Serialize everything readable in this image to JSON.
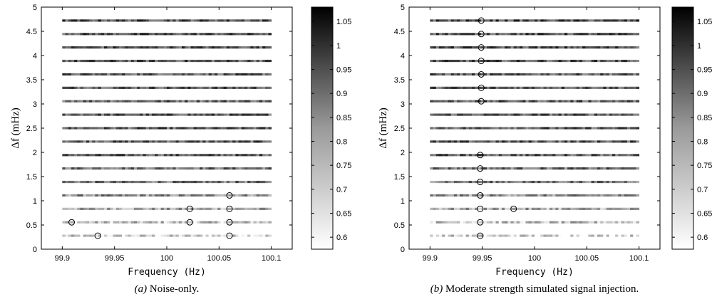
{
  "chart_data": [
    {
      "type": "scatter",
      "panel_label": "(a)",
      "caption": "Noise-only.",
      "xlabel": "Frequency (Hz)",
      "ylabel": "Δf (mHz)",
      "xlim": [
        99.88,
        100.12
      ],
      "ylim": [
        0,
        5
      ],
      "xticks": [
        "99.9",
        "99.95",
        "100",
        "100.05",
        "100.1"
      ],
      "yticks": [
        "0",
        "0.5",
        "1",
        "1.5",
        "2",
        "2.5",
        "3",
        "3.5",
        "4",
        "4.5",
        "5"
      ],
      "colorbar": {
        "range": [
          0.575,
          1.08
        ],
        "ticks": [
          "0.6",
          "0.65",
          "0.7",
          "0.75",
          "0.8",
          "0.85",
          "0.9",
          "0.95",
          "1",
          "1.05"
        ]
      },
      "rows": {
        "x_range": [
          99.9,
          100.1
        ],
        "delta_f": [
          0.278,
          0.556,
          0.833,
          1.111,
          1.389,
          1.667,
          1.944,
          2.222,
          2.5,
          2.778,
          3.056,
          3.333,
          3.611,
          3.889,
          4.167,
          4.444,
          4.722
        ],
        "mean_level": [
          0.66,
          0.7,
          0.74,
          0.8,
          0.84,
          0.87,
          0.9,
          0.9,
          0.9,
          0.9,
          0.9,
          0.9,
          0.9,
          0.9,
          0.92,
          0.92,
          0.92
        ]
      },
      "circles": [
        {
          "x": 99.934,
          "y": 0.278
        },
        {
          "x": 100.06,
          "y": 0.278
        },
        {
          "x": 99.909,
          "y": 0.556
        },
        {
          "x": 100.022,
          "y": 0.556
        },
        {
          "x": 100.06,
          "y": 0.556
        },
        {
          "x": 100.022,
          "y": 0.833
        },
        {
          "x": 100.06,
          "y": 0.833
        },
        {
          "x": 100.06,
          "y": 1.111
        }
      ]
    },
    {
      "type": "scatter",
      "panel_label": "(b)",
      "caption": "Moderate strength simulated signal injection.",
      "xlabel": "Frequency (Hz)",
      "ylabel": "Δf (mHz)",
      "xlim": [
        99.88,
        100.12
      ],
      "ylim": [
        0,
        5
      ],
      "xticks": [
        "99.9",
        "99.95",
        "100",
        "100.05",
        "100.1"
      ],
      "yticks": [
        "0",
        "0.5",
        "1",
        "1.5",
        "2",
        "2.5",
        "3",
        "3.5",
        "4",
        "4.5",
        "5"
      ],
      "colorbar": {
        "range": [
          0.575,
          1.08
        ],
        "ticks": [
          "0.6",
          "0.65",
          "0.7",
          "0.75",
          "0.8",
          "0.85",
          "0.9",
          "0.95",
          "1",
          "1.05"
        ]
      },
      "rows": {
        "x_range": [
          99.9,
          100.1
        ],
        "delta_f": [
          0.278,
          0.556,
          0.833,
          1.111,
          1.389,
          1.667,
          1.944,
          2.222,
          2.5,
          2.778,
          3.056,
          3.333,
          3.611,
          3.889,
          4.167,
          4.444,
          4.722
        ],
        "mean_level": [
          0.66,
          0.7,
          0.74,
          0.8,
          0.84,
          0.87,
          0.9,
          0.9,
          0.9,
          0.9,
          0.9,
          0.9,
          0.9,
          0.9,
          0.92,
          0.92,
          0.92
        ]
      },
      "circles": [
        {
          "x": 99.948,
          "y": 0.278
        },
        {
          "x": 99.948,
          "y": 0.556
        },
        {
          "x": 99.948,
          "y": 0.833
        },
        {
          "x": 99.98,
          "y": 0.833
        },
        {
          "x": 99.948,
          "y": 1.111
        },
        {
          "x": 99.948,
          "y": 1.389
        },
        {
          "x": 99.948,
          "y": 1.667
        },
        {
          "x": 99.948,
          "y": 1.944
        },
        {
          "x": 99.949,
          "y": 3.056
        },
        {
          "x": 99.949,
          "y": 3.333
        },
        {
          "x": 99.949,
          "y": 3.611
        },
        {
          "x": 99.949,
          "y": 3.889
        },
        {
          "x": 99.949,
          "y": 4.167
        },
        {
          "x": 99.949,
          "y": 4.444
        },
        {
          "x": 99.949,
          "y": 4.722
        }
      ]
    }
  ]
}
